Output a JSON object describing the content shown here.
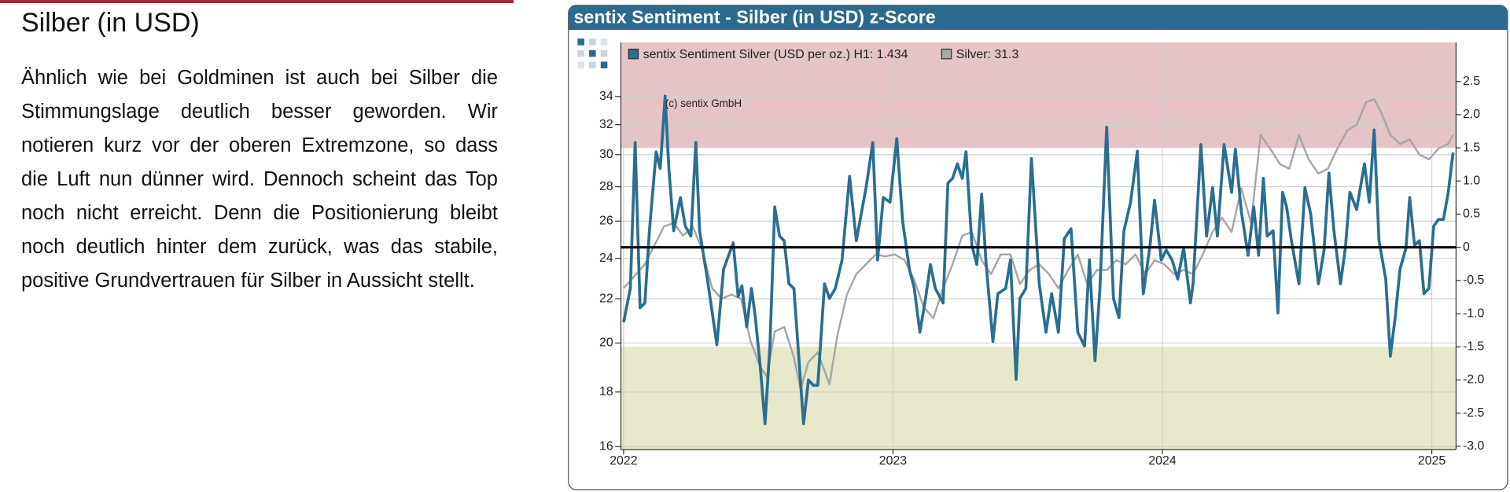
{
  "article": {
    "heading": "Silber (in USD)",
    "paragraph": "Ähnlich wie bei Goldminen ist auch bei Silber die Stimmungslage deutlich besser geworden. Wir notieren kurz vor der oberen Extremzone, so dass die Luft nun dünner wird. Dennoch scheint das Top noch nicht erreicht. Denn die Positionierung bleibt noch deutlich hinter dem zurück, was das stabile, positive Grundvertrauen für Silber in Aussicht stellt."
  },
  "chart_data": {
    "type": "line",
    "title": "sentix Sentiment - Silber (in USD) z-Score",
    "annotation": "(c) sentix GmbH",
    "xlim": [
      2021.99,
      2025.09
    ],
    "xticks": [
      2022,
      2023,
      2024,
      2025
    ],
    "ylim": [
      15.9,
      38.2
    ],
    "log_y": true,
    "yticks": [
      16,
      18,
      20,
      22,
      24,
      26,
      28,
      30,
      32,
      34
    ],
    "y2lim": [
      -3.05,
      3.09
    ],
    "y2ticks": [
      {
        "value": 2.5,
        "label": "2.5"
      },
      {
        "value": 2,
        "label": "2.0"
      },
      {
        "value": 1.5,
        "label": "1.5"
      },
      {
        "value": 1,
        "label": "1.0"
      },
      {
        "value": 0.5,
        "label": "0.5"
      },
      0,
      {
        "value": -0.5,
        "label": "-0.5"
      },
      {
        "value": -1,
        "label": "-1.0"
      },
      {
        "value": -1.5,
        "label": "-1.5"
      },
      {
        "value": -2,
        "label": "-2.0"
      },
      {
        "value": -2.5,
        "label": "-2.5"
      },
      {
        "value": -3,
        "label": "-3.0"
      }
    ],
    "grid": true,
    "bands": [
      {
        "from": 1.5,
        "to": 3.09,
        "color": "#e5c3c6",
        "axis": "y2"
      },
      {
        "from": -3.05,
        "to": -1.5,
        "color": "#e7e7ca",
        "axis": "y2"
      }
    ],
    "reference_line": {
      "value": 0,
      "axis": "y2",
      "color": "#000000"
    },
    "series": [
      {
        "name": "sentix Sentiment Silver (USD per oz.) H1: 1.434",
        "color": "#2a6e91",
        "axis": "y2",
        "x": [
          2022.0,
          2022.025,
          2022.043,
          2022.061,
          2022.079,
          2022.096,
          2022.121,
          2022.136,
          2022.154,
          2022.168,
          2022.186,
          2022.211,
          2022.229,
          2022.25,
          2022.268,
          2022.282,
          2022.311,
          2022.346,
          2022.371,
          2022.407,
          2022.425,
          2022.439,
          2022.457,
          2022.475,
          2022.489,
          2022.507,
          2022.525,
          2022.543,
          2022.561,
          2022.579,
          2022.596,
          2022.614,
          2022.632,
          2022.65,
          2022.668,
          2022.686,
          2022.704,
          2022.721,
          2022.746,
          2022.764,
          2022.786,
          2022.811,
          2022.839,
          2022.864,
          2022.9,
          2022.925,
          2022.943,
          2022.964,
          2022.989,
          2023.014,
          2023.036,
          2023.061,
          2023.079,
          2023.1,
          2023.121,
          2023.139,
          2023.157,
          2023.186,
          2023.204,
          2023.221,
          2023.239,
          2023.257,
          2023.271,
          2023.293,
          2023.311,
          2023.329,
          2023.346,
          2023.371,
          2023.389,
          2023.418,
          2023.436,
          2023.457,
          2023.471,
          2023.493,
          2023.514,
          2023.543,
          2023.568,
          2023.589,
          2023.614,
          2023.636,
          2023.661,
          2023.686,
          2023.711,
          2023.729,
          2023.75,
          2023.768,
          2023.793,
          2023.818,
          2023.839,
          2023.857,
          2023.882,
          2023.907,
          2023.929,
          2023.954,
          2023.971,
          2023.996,
          2024.014,
          2024.036,
          2024.057,
          2024.079,
          2024.104,
          2024.114,
          2024.143,
          2024.164,
          2024.186,
          2024.204,
          2024.229,
          2024.257,
          2024.271,
          2024.293,
          2024.318,
          2024.339,
          2024.357,
          2024.375,
          2024.389,
          2024.411,
          2024.429,
          2024.446,
          2024.461,
          2024.479,
          2024.507,
          2024.529,
          2024.55,
          2024.579,
          2024.6,
          2024.618,
          2024.636,
          2024.661,
          2024.679,
          2024.696,
          2024.721,
          2024.75,
          2024.768,
          2024.786,
          2024.804,
          2024.829,
          2024.846,
          2024.864,
          2024.882,
          2024.904,
          2024.918,
          2024.936,
          2024.954,
          2024.971,
          2024.989,
          2025.007,
          2025.025,
          2025.043,
          2025.061,
          2025.079
        ],
        "values": [
          -1.13,
          -0.62,
          1.58,
          -0.91,
          -0.84,
          0.25,
          1.44,
          1.19,
          2.28,
          1.19,
          0.25,
          0.75,
          0.32,
          0.17,
          1.58,
          0.25,
          -0.48,
          -1.47,
          -0.33,
          0.07,
          -0.74,
          -0.58,
          -1.2,
          -0.62,
          -1.06,
          -1.79,
          -2.66,
          -1.49,
          0.61,
          0.17,
          0.1,
          -0.55,
          -0.62,
          -1.64,
          -2.66,
          -2,
          -2.08,
          -2.08,
          -0.55,
          -0.77,
          -0.62,
          -0.19,
          1.07,
          0.1,
          0.9,
          1.58,
          -0.19,
          0.75,
          0.68,
          1.64,
          0.39,
          -0.33,
          -0.62,
          -1.28,
          -0.77,
          -0.26,
          -0.62,
          -0.84,
          0.97,
          1.04,
          1.26,
          1.04,
          1.44,
          0.03,
          -0.26,
          0.8,
          -0.26,
          -1.42,
          -0.7,
          -0.62,
          -0.19,
          -1.99,
          -0.77,
          -0.62,
          1.34,
          -0.55,
          -1.28,
          -0.7,
          -1.28,
          0.13,
          0.28,
          -1.28,
          -1.49,
          -0.19,
          -1.71,
          -0.62,
          1.81,
          -0.77,
          -1.06,
          0.25,
          0.68,
          1.45,
          -0.7,
          0.03,
          0.71,
          -0.19,
          -0.04,
          -0.19,
          -0.48,
          -0.01,
          -0.84,
          -0.55,
          1.55,
          0.17,
          0.9,
          0.17,
          1.55,
          0.83,
          1.48,
          0.54,
          -0.12,
          0.61,
          -0.12,
          1.04,
          0.17,
          0.25,
          -0.99,
          0.83,
          0.61,
          0.1,
          -0.55,
          0.9,
          0.51,
          -0.55,
          -0.04,
          1.12,
          0.28,
          -0.55,
          -0.01,
          0.83,
          0.57,
          1.26,
          0.68,
          1.77,
          0.1,
          -0.48,
          -1.64,
          -1.06,
          -0.33,
          -0.01,
          0.75,
          0.03,
          0.1,
          -0.7,
          -0.62,
          0.32,
          0.42,
          0.42,
          0.83,
          1.43
        ]
      },
      {
        "name": "Silver: 31.3",
        "color": "#a6a6a6",
        "axis": "y",
        "x": [
          2022.0,
          2022.079,
          2022.15,
          2022.186,
          2022.221,
          2022.257,
          2022.293,
          2022.329,
          2022.364,
          2022.4,
          2022.436,
          2022.471,
          2022.507,
          2022.532,
          2022.561,
          2022.596,
          2022.632,
          2022.657,
          2022.686,
          2022.721,
          2022.764,
          2022.793,
          2022.829,
          2022.864,
          2022.9,
          2022.936,
          2022.971,
          2023.007,
          2023.043,
          2023.079,
          2023.114,
          2023.15,
          2023.186,
          2023.221,
          2023.257,
          2023.293,
          2023.329,
          2023.364,
          2023.4,
          2023.436,
          2023.471,
          2023.507,
          2023.543,
          2023.579,
          2023.614,
          2023.65,
          2023.686,
          2023.721,
          2023.757,
          2023.793,
          2023.829,
          2023.864,
          2023.9,
          2023.936,
          2023.971,
          2024.007,
          2024.043,
          2024.079,
          2024.114,
          2024.15,
          2024.186,
          2024.221,
          2024.257,
          2024.293,
          2024.329,
          2024.364,
          2024.4,
          2024.436,
          2024.471,
          2024.507,
          2024.543,
          2024.579,
          2024.614,
          2024.65,
          2024.686,
          2024.721,
          2024.757,
          2024.786,
          2024.811,
          2024.846,
          2024.882,
          2024.918,
          2024.954,
          2024.989,
          2025.025,
          2025.061,
          2025.079
        ],
        "values": [
          22.5,
          23.7,
          25.7,
          25.9,
          25.2,
          25.7,
          24.4,
          22.5,
          22.0,
          22.2,
          22.0,
          20.1,
          19.0,
          18.6,
          20.5,
          20.7,
          19.4,
          18.1,
          19.2,
          19.6,
          18.3,
          20.3,
          22.2,
          23.2,
          23.7,
          24.2,
          24.1,
          24.2,
          23.9,
          22.9,
          21.6,
          21.1,
          22.5,
          23.7,
          25.2,
          25.4,
          23.9,
          23.2,
          24.2,
          24.2,
          22.7,
          23.4,
          23.7,
          23.2,
          22.5,
          23.4,
          24.2,
          22.7,
          23.4,
          23.4,
          23.9,
          23.7,
          24.2,
          23.2,
          23.9,
          23.7,
          23.2,
          23.4,
          23.2,
          24.2,
          25.4,
          26.2,
          25.4,
          27.9,
          25.9,
          31.3,
          30.4,
          29.4,
          29.1,
          31.3,
          29.7,
          28.8,
          29.1,
          30.4,
          31.6,
          32.0,
          33.6,
          33.8,
          32.9,
          31.3,
          30.7,
          31.0,
          30.0,
          29.7,
          30.4,
          30.7,
          31.3
        ]
      }
    ]
  }
}
